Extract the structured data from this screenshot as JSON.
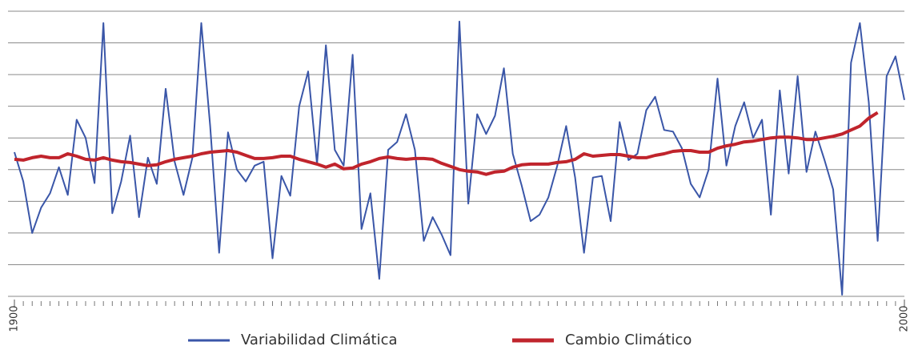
{
  "chart_data": {
    "type": "line",
    "x": [
      1900,
      1901,
      1902,
      1903,
      1904,
      1905,
      1906,
      1907,
      1908,
      1909,
      1910,
      1911,
      1912,
      1913,
      1914,
      1915,
      1916,
      1917,
      1918,
      1919,
      1920,
      1921,
      1922,
      1923,
      1924,
      1925,
      1926,
      1927,
      1928,
      1929,
      1930,
      1931,
      1932,
      1933,
      1934,
      1935,
      1936,
      1937,
      1938,
      1939,
      1940,
      1941,
      1942,
      1943,
      1944,
      1945,
      1946,
      1947,
      1948,
      1949,
      1950,
      1951,
      1952,
      1953,
      1954,
      1955,
      1956,
      1957,
      1958,
      1959,
      1960,
      1961,
      1962,
      1963,
      1964,
      1965,
      1966,
      1967,
      1968,
      1969,
      1970,
      1971,
      1972,
      1973,
      1974,
      1975,
      1976,
      1977,
      1978,
      1979,
      1980,
      1981,
      1982,
      1983,
      1984,
      1985,
      1986,
      1987,
      1988,
      1989,
      1990,
      1991,
      1992,
      1993,
      1994,
      1995,
      1996,
      1997,
      1998,
      1999,
      2000
    ],
    "series": [
      {
        "name": "Variabilidad Climática",
        "color": "#3a56a8",
        "values": [
          182,
          145,
          80,
          112,
          130,
          163,
          128,
          223,
          200,
          143,
          345,
          105,
          145,
          203,
          100,
          175,
          142,
          262,
          170,
          128,
          175,
          345,
          215,
          55,
          207,
          160,
          145,
          165,
          170,
          48,
          152,
          127,
          240,
          284,
          167,
          317,
          185,
          165,
          305,
          85,
          130,
          22,
          185,
          195,
          230,
          185,
          70,
          100,
          78,
          52,
          347,
          117,
          230,
          205,
          228,
          288,
          180,
          140,
          95,
          103,
          125,
          165,
          215,
          150,
          55,
          150,
          152,
          95,
          220,
          172,
          180,
          235,
          252,
          210,
          208,
          187,
          142,
          125,
          160,
          275,
          165,
          215,
          245,
          200,
          223,
          103,
          260,
          155,
          278,
          157,
          208,
          173,
          135,
          2,
          295,
          345,
          245,
          70,
          278,
          303,
          248
        ]
      },
      {
        "name": "Cambio Climático",
        "color": "#c0242c",
        "values": [
          173,
          172,
          175,
          177,
          175,
          175,
          180,
          177,
          173,
          172,
          175,
          172,
          170,
          169,
          167,
          165,
          166,
          170,
          173,
          175,
          177,
          180,
          182,
          183,
          184,
          182,
          178,
          174,
          174,
          175,
          177,
          177,
          173,
          170,
          167,
          163,
          167,
          161,
          162,
          167,
          170,
          174,
          176,
          174,
          173,
          174,
          174,
          173,
          168,
          164,
          160,
          158,
          157,
          154,
          157,
          158,
          163,
          166,
          167,
          167,
          167,
          169,
          170,
          173,
          180,
          177,
          178,
          179,
          179,
          177,
          175,
          175,
          178,
          180,
          183,
          184,
          184,
          182,
          182,
          187,
          190,
          192,
          195,
          196,
          198,
          200,
          201,
          201,
          200,
          198,
          198,
          200,
          202,
          205,
          210,
          215,
          225,
          232,
          null,
          null,
          null
        ]
      }
    ],
    "xlim": [
      1900,
      2000
    ],
    "xticks": [
      1900,
      2000
    ],
    "minor_tick_step": 1,
    "ylim": [
      0,
      360
    ],
    "yticks": [
      0,
      40,
      80,
      120,
      160,
      200,
      240,
      280,
      320,
      360
    ],
    "grid": true
  }
}
